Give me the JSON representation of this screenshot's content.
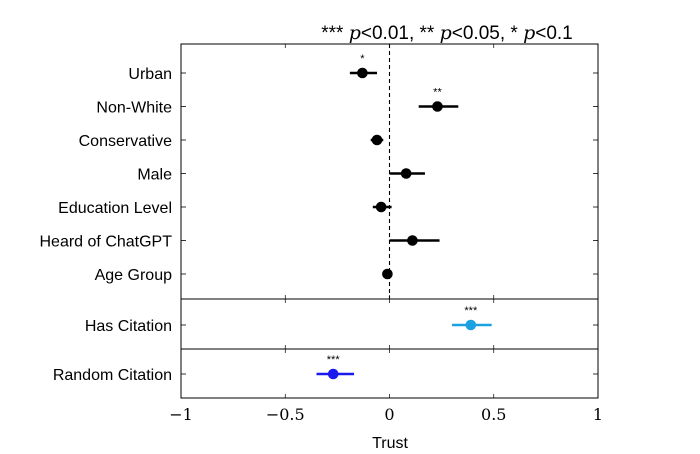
{
  "chart_data": {
    "type": "coefficient-plot",
    "title": "*** p<0.01, ** p<0.05, * p<0.1",
    "title_parts": [
      {
        "text": "*** ",
        "style": "normal"
      },
      {
        "text": "p",
        "style": "italic"
      },
      {
        "text": "<0.01, ** ",
        "style": "normal"
      },
      {
        "text": "p",
        "style": "italic"
      },
      {
        "text": "<0.05, * ",
        "style": "normal"
      },
      {
        "text": "p",
        "style": "italic"
      },
      {
        "text": "<0.1",
        "style": "normal"
      }
    ],
    "xlabel": "Trust",
    "xlim": [
      -1,
      1
    ],
    "xticks": [
      -1,
      -0.5,
      0,
      0.5,
      1
    ],
    "xtick_labels": [
      "−1",
      "−0.5",
      "0",
      "0.5",
      "1"
    ],
    "reference_line": 0,
    "panels": [
      {
        "name": "demographics",
        "rows": [
          {
            "label": "Urban",
            "estimate": -0.13,
            "ci": [
              -0.19,
              -0.06
            ],
            "stars": "*",
            "color": "#000000"
          },
          {
            "label": "Non-White",
            "estimate": 0.23,
            "ci": [
              0.14,
              0.33
            ],
            "stars": "**",
            "color": "#000000"
          },
          {
            "label": "Conservative",
            "estimate": -0.06,
            "ci": [
              -0.09,
              -0.03
            ],
            "stars": "",
            "color": "#000000"
          },
          {
            "label": "Male",
            "estimate": 0.08,
            "ci": [
              0.0,
              0.17
            ],
            "stars": "",
            "color": "#000000"
          },
          {
            "label": "Education Level",
            "estimate": -0.04,
            "ci": [
              -0.08,
              0.01
            ],
            "stars": "",
            "color": "#000000"
          },
          {
            "label": "Heard of ChatGPT",
            "estimate": 0.11,
            "ci": [
              0.0,
              0.24
            ],
            "stars": "",
            "color": "#000000"
          },
          {
            "label": "Age Group",
            "estimate": -0.01,
            "ci": [
              -0.03,
              0.0
            ],
            "stars": "",
            "color": "#000000"
          }
        ]
      },
      {
        "name": "has-citation",
        "rows": [
          {
            "label": "Has Citation",
            "estimate": 0.39,
            "ci": [
              0.3,
              0.49
            ],
            "stars": "***",
            "color": "#1ba1e2"
          }
        ]
      },
      {
        "name": "random-citation",
        "rows": [
          {
            "label": "Random Citation",
            "estimate": -0.27,
            "ci": [
              -0.35,
              -0.17
            ],
            "stars": "***",
            "color": "#1a1aee"
          }
        ]
      }
    ]
  }
}
